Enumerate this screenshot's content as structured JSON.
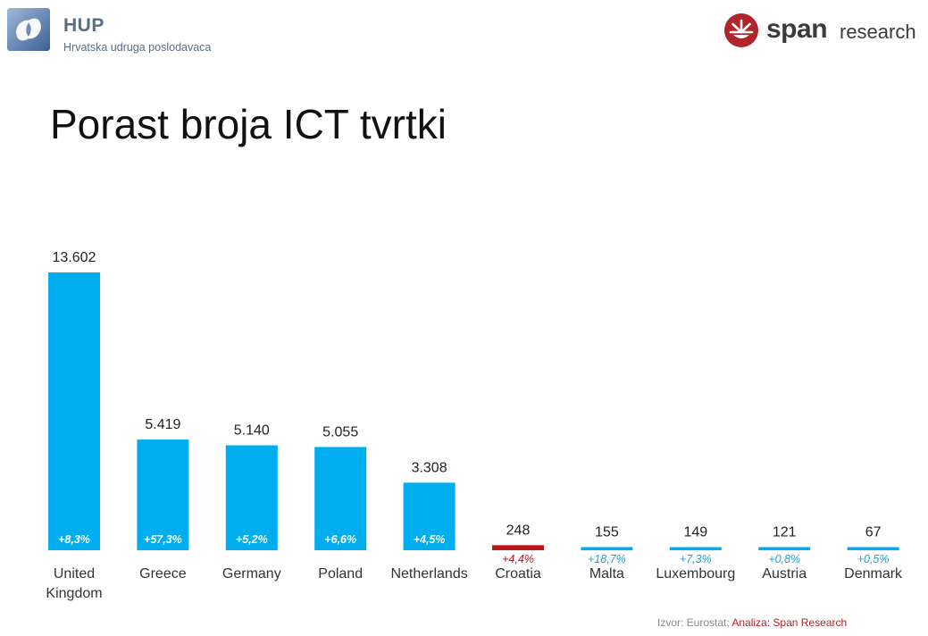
{
  "header": {
    "org_abbr": "HUP",
    "org_name": "Hrvatska udruga poslodavaca",
    "partner_brand": "span",
    "partner_suffix": "research"
  },
  "title": "Porast broja ICT tvrtki",
  "colors": {
    "bar_default": "#00aeef",
    "bar_highlight": "#c0141c",
    "growth_default": "#1aa3e0",
    "growth_highlight": "#c0141c",
    "brand_red": "#b0252a",
    "hup_blue": "#4a6fa5"
  },
  "icons": {
    "hup_logo": "hup-logo-icon",
    "span_logo": "span-logo-icon"
  },
  "chart_data": {
    "type": "bar",
    "title": "Porast broja ICT tvrtki",
    "categories": [
      [
        "United",
        "Kingdom"
      ],
      [
        "Greece"
      ],
      [
        "Germany"
      ],
      [
        "Poland"
      ],
      [
        "Netherlands"
      ],
      [
        "Croatia"
      ],
      [
        "Malta"
      ],
      [
        "Luxembourg"
      ],
      [
        "Austria"
      ],
      [
        "Denmark"
      ]
    ],
    "values": [
      13602,
      5419,
      5140,
      5055,
      3308,
      248,
      155,
      149,
      121,
      67
    ],
    "value_labels": [
      "13.602",
      "5.419",
      "5.140",
      "5.055",
      "3.308",
      "248",
      "155",
      "149",
      "121",
      "67"
    ],
    "growth_labels": [
      "+8,3%",
      "+57,3%",
      "+5,2%",
      "+6,6%",
      "+4,5%",
      "+4,4%",
      "+18,7%",
      "+7,3%",
      "+0,8%",
      "+0,5%"
    ],
    "highlight_category": "Croatia",
    "ylim": [
      0,
      13602
    ],
    "grid": false,
    "legend": "none"
  },
  "footer": {
    "source": "Izvor: Eurostat;",
    "analysis": "Analiza: Span Research"
  }
}
